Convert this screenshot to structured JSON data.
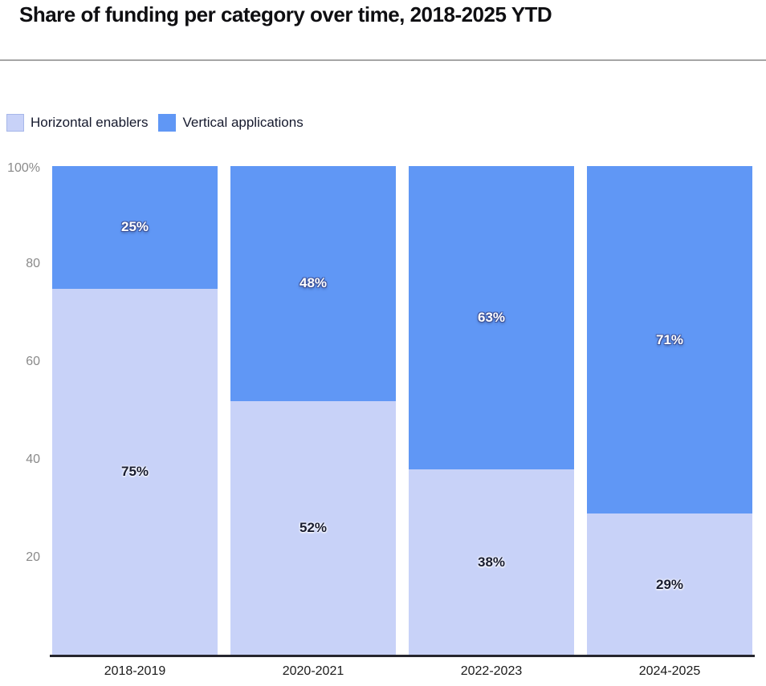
{
  "title": "Share of funding per category over time, 2018-2025 YTD",
  "colors": {
    "horizontal": "#c8d2f8",
    "vertical": "#6097f5",
    "axis_line": "#26262e",
    "divider": "#a5a5a5",
    "tick_label": "#8a8a8a"
  },
  "legend": [
    {
      "label": "Horizontal enablers",
      "color": "#c8d2f8"
    },
    {
      "label": "Vertical applications",
      "color": "#6097f5"
    }
  ],
  "chart_data": {
    "type": "bar",
    "stacked": true,
    "percent": true,
    "title": "Share of funding per category over time, 2018-2025 YTD",
    "categories": [
      "2018-2019",
      "2020-2021",
      "2022-2023",
      "2024-2025"
    ],
    "series": [
      {
        "name": "Horizontal enablers",
        "values": [
          75,
          52,
          38,
          29
        ],
        "labels": [
          "75%",
          "52%",
          "38%",
          "29%"
        ]
      },
      {
        "name": "Vertical applications",
        "values": [
          25,
          48,
          63,
          71
        ],
        "labels": [
          "25%",
          "48%",
          "63%",
          "71%"
        ]
      }
    ],
    "y_axis": {
      "ticks": [
        "100%",
        "80",
        "60",
        "40",
        "20"
      ],
      "tick_values": [
        100,
        80,
        60,
        40,
        20
      ],
      "range": [
        0,
        100
      ]
    },
    "xlabel": "",
    "ylabel": "",
    "grid": false,
    "legend_position": "top-left"
  }
}
